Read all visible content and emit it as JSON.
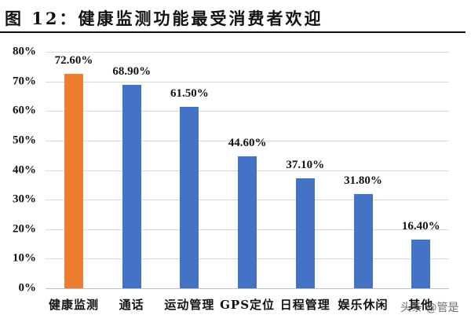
{
  "title": "图  12：健康监测功能最受消费者欢迎",
  "watermark": "头条 @管是",
  "colors": {
    "highlight": "#ED7D31",
    "default": "#4472C4",
    "grid": "#D9D9D9"
  },
  "chart_data": {
    "type": "bar",
    "title": "图 12：健康监测功能最受消费者欢迎",
    "xlabel": "",
    "ylabel": "",
    "categories": [
      "健康监测",
      "通话",
      "运动管理",
      "GPS定位",
      "日程管理",
      "娱乐休闲",
      "其他"
    ],
    "values": [
      72.6,
      68.9,
      61.5,
      44.6,
      37.1,
      31.8,
      16.4
    ],
    "value_labels": [
      "72.60%",
      "68.90%",
      "61.50%",
      "44.60%",
      "37.10%",
      "31.80%",
      "16.40%"
    ],
    "bar_colors": [
      "#ED7D31",
      "#4472C4",
      "#4472C4",
      "#4472C4",
      "#4472C4",
      "#4472C4",
      "#4472C4"
    ],
    "ylim": [
      0,
      80
    ],
    "yticks": [
      "0%",
      "10%",
      "20%",
      "30%",
      "40%",
      "50%",
      "60%",
      "70%",
      "80%"
    ],
    "grid": true,
    "legend": null
  }
}
